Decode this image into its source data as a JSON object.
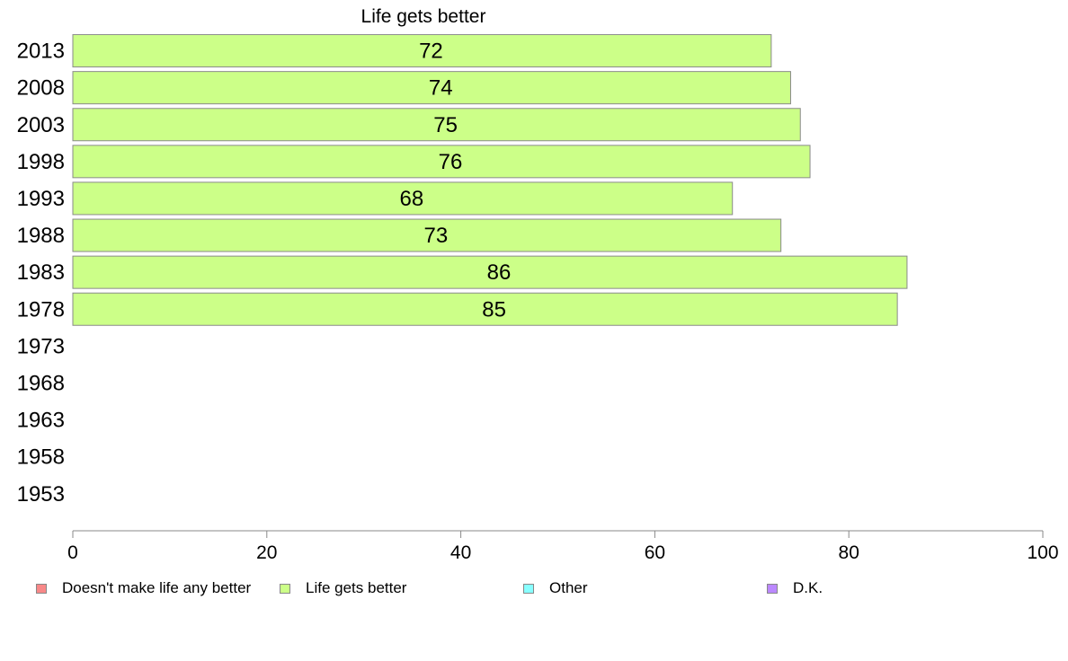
{
  "chart_data": {
    "type": "bar",
    "orientation": "horizontal",
    "title": "Life gets better",
    "categories": [
      "2013",
      "2008",
      "2003",
      "1998",
      "1993",
      "1988",
      "1983",
      "1978",
      "1973",
      "1968",
      "1963",
      "1958",
      "1953"
    ],
    "series": [
      {
        "name": "Life gets better",
        "color": "#ccff88",
        "values": [
          72,
          74,
          75,
          76,
          68,
          73,
          86,
          85,
          null,
          null,
          null,
          null,
          null
        ]
      }
    ],
    "xlim": [
      0,
      100
    ],
    "xticks": [
      "0",
      "20",
      "40",
      "60",
      "80",
      "100"
    ],
    "grid": false,
    "legend_position": "bottom"
  },
  "legend": [
    {
      "label": "Doesn't make life any better",
      "color": "#f88888"
    },
    {
      "label": "Life gets better",
      "color": "#ccff88"
    },
    {
      "label": "Other",
      "color": "#88ffff"
    },
    {
      "label": "D.K.",
      "color": "#bb88ff"
    }
  ]
}
